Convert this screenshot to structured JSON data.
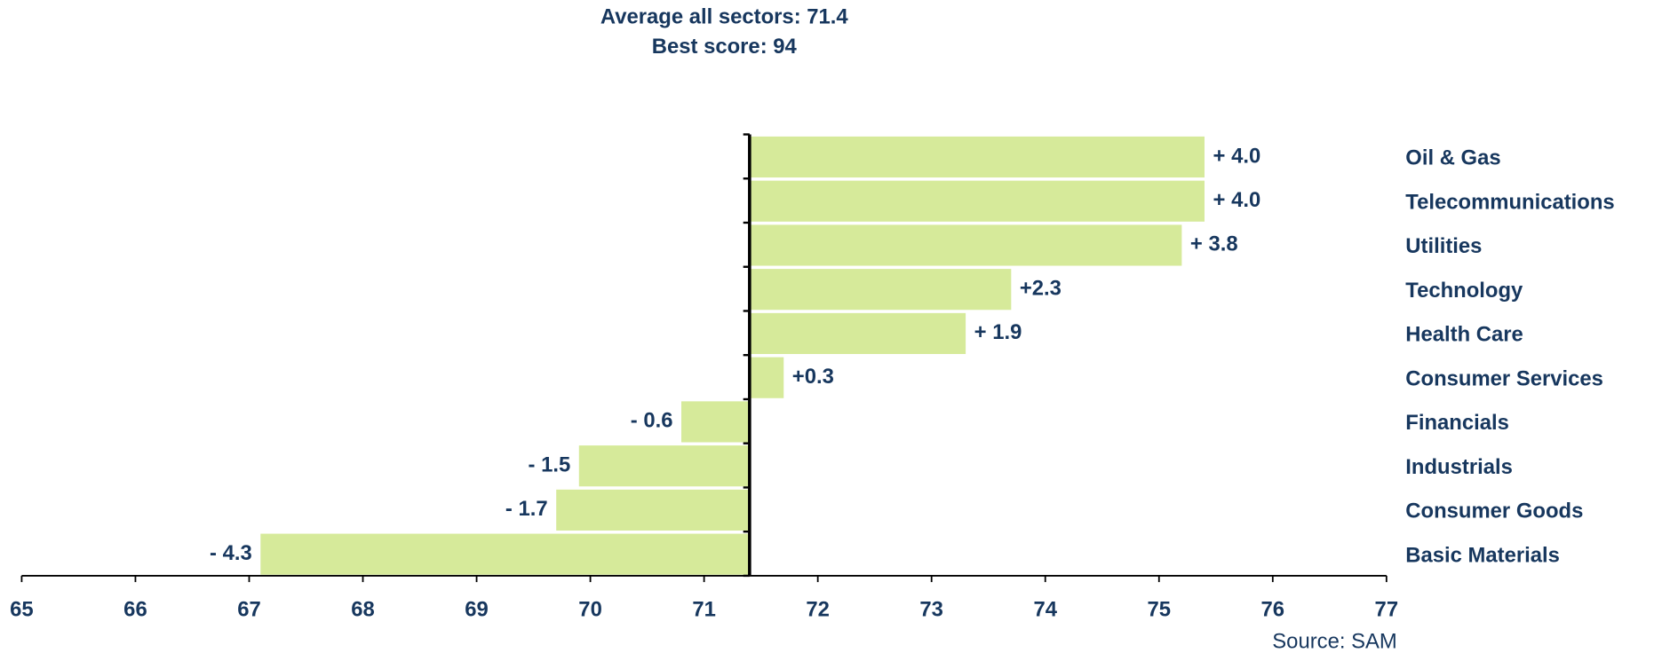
{
  "chart_data": {
    "type": "bar",
    "orientation": "horizontal",
    "title": "Average all sectors: 71.4",
    "subtitle": "Best score: 94",
    "source": "Source: SAM",
    "baseline": 71.4,
    "categories": [
      "Oil & Gas",
      "Telecommunications",
      "Utilities",
      "Technology",
      "Health Care",
      "Consumer Services",
      "Financials",
      "Industrials",
      "Consumer Goods",
      "Basic Materials"
    ],
    "values": [
      4.0,
      4.0,
      3.8,
      2.3,
      1.9,
      0.3,
      -0.6,
      -1.5,
      -1.7,
      -4.3
    ],
    "value_labels": [
      "+ 4.0",
      "+ 4.0",
      "+ 3.8",
      "+2.3",
      "+ 1.9",
      "+0.3",
      "- 0.6",
      "- 1.5",
      "- 1.7",
      "- 4.3"
    ],
    "color": "#d6ea9a",
    "xlim": [
      65,
      77
    ],
    "xticks": [
      65,
      66,
      67,
      68,
      69,
      70,
      71,
      72,
      73,
      74,
      75,
      76,
      77
    ],
    "grid": false
  }
}
